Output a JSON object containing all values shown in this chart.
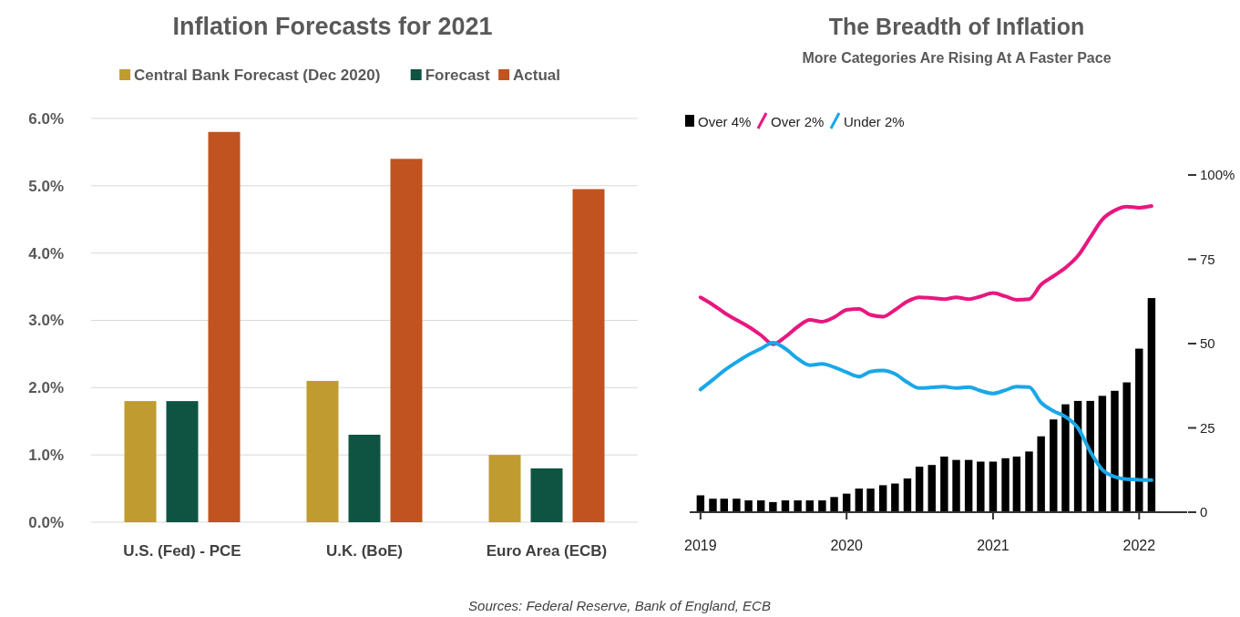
{
  "chart_data": [
    {
      "type": "bar",
      "title": "Inflation Forecasts for 2021",
      "categories": [
        "U.S. (Fed) - PCE",
        "U.K. (BoE)",
        "Euro Area (ECB)"
      ],
      "series": [
        {
          "name": "Central Bank Forecast (Dec 2020)",
          "color": "#bf9b30",
          "values": [
            1.8,
            2.1,
            1.0
          ]
        },
        {
          "name": "Forecast",
          "color": "#0f5443",
          "values": [
            1.8,
            1.3,
            0.8
          ]
        },
        {
          "name": "Actual",
          "color": "#c0531f",
          "values": [
            5.8,
            5.4,
            4.95
          ]
        }
      ],
      "ylim": [
        0,
        6
      ],
      "yticks": [
        {
          "value": 0,
          "label": "0.0%"
        },
        {
          "value": 1,
          "label": "1.0%"
        },
        {
          "value": 2,
          "label": "2.0%"
        },
        {
          "value": 3,
          "label": "3.0%"
        },
        {
          "value": 4,
          "label": "4.0%"
        },
        {
          "value": 5,
          "label": "5.0%"
        },
        {
          "value": 6,
          "label": "6.0%"
        }
      ],
      "grid": "y",
      "legend": "top",
      "annotations": [
        "Sources: Federal Reserve, Bank of England, ECB"
      ]
    },
    {
      "type": "bar",
      "title": "The Breadth of Inflation",
      "subtitle": "More Categories Are Rising At A Faster Pace",
      "x": [
        "2019-01",
        "2019-02",
        "2019-03",
        "2019-04",
        "2019-05",
        "2019-06",
        "2019-07",
        "2019-08",
        "2019-09",
        "2019-10",
        "2019-11",
        "2019-12",
        "2020-01",
        "2020-02",
        "2020-03",
        "2020-04",
        "2020-05",
        "2020-06",
        "2020-07",
        "2020-08",
        "2020-09",
        "2020-10",
        "2020-11",
        "2020-12",
        "2021-01",
        "2021-02",
        "2021-03",
        "2021-04",
        "2021-05",
        "2021-06",
        "2021-07",
        "2021-08",
        "2021-09",
        "2021-10",
        "2021-11",
        "2021-12",
        "2022-01",
        "2022-02"
      ],
      "series": [
        {
          "name": "Over 4%",
          "type": "bar",
          "color": "#000000",
          "values": [
            5,
            4,
            4,
            4,
            3.5,
            3.5,
            3,
            3.5,
            3.5,
            3.5,
            3.5,
            4.5,
            5.5,
            7,
            7,
            8,
            8.5,
            10,
            13.5,
            14,
            16.5,
            15.5,
            15.5,
            15,
            15,
            16,
            16.5,
            18,
            22.5,
            27.5,
            32,
            33,
            33,
            34.5,
            36,
            38.5,
            48.5,
            63.5
          ]
        },
        {
          "name": "Over 2%",
          "type": "line",
          "color": "#e8177f",
          "values": [
            63.7,
            61.5,
            59.2,
            57,
            55,
            52.5,
            49.8,
            52,
            55,
            57,
            56.5,
            57.8,
            60,
            60.3,
            58.5,
            58,
            60,
            62.5,
            63.7,
            63.5,
            63.2,
            63.7,
            63.2,
            64,
            65,
            64,
            63,
            63.2,
            67.5,
            70,
            72.5,
            76,
            81.5,
            86.8,
            89.5,
            90.6,
            90.3,
            90.8
          ]
        },
        {
          "name": "Under 2%",
          "type": "line",
          "color": "#1aa7e8",
          "values": [
            36.4,
            39.3,
            42,
            44.5,
            46.7,
            48.5,
            50.3,
            48.5,
            45.5,
            43.6,
            44,
            43,
            41.5,
            40.2,
            41.7,
            42,
            41,
            38.5,
            36.8,
            37,
            37.2,
            36.8,
            37.1,
            36,
            35.2,
            36.2,
            37.2,
            37.1,
            32.5,
            30,
            28.3,
            25,
            18,
            12.6,
            10.5,
            9.8,
            9.6,
            9.5
          ]
        }
      ],
      "xlim": [
        "2018-12-05",
        "2022-05"
      ],
      "xticks": [
        "2019",
        "2020",
        "2021",
        "2022"
      ],
      "ylim": [
        0,
        100
      ],
      "yticks": [
        0,
        25,
        50,
        75,
        {
          "value": 100,
          "label": "100%"
        }
      ],
      "legend": "top left"
    }
  ]
}
